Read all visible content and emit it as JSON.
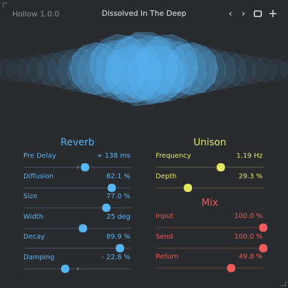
{
  "app": {
    "version": "Hollow 1.0.0",
    "preset_name": "Dissolved In The Deep"
  },
  "nav": {
    "prev": "‹",
    "next": "›",
    "add": "+"
  },
  "colors": {
    "background": "#2a2b2e",
    "reverb": "#56b5f5",
    "unison": "#e4e761",
    "mix": "#f05c5c"
  },
  "reverb": {
    "title": "Reverb",
    "params": [
      {
        "label": "Pre Delay",
        "value": "+ 138 ms",
        "level": 0.57,
        "bipolar": true
      },
      {
        "label": "Diffusion",
        "value": "82.1 %",
        "level": 0.821,
        "bipolar": false
      },
      {
        "label": "Size",
        "value": "77.0 %",
        "level": 0.77,
        "bipolar": false
      },
      {
        "label": "Width",
        "value": "25 deg",
        "level": 0.55,
        "bipolar": false
      },
      {
        "label": "Decay",
        "value": "89.9 %",
        "level": 0.899,
        "bipolar": false
      },
      {
        "label": "Damping",
        "value": "- 22.8 %",
        "level": 0.386,
        "bipolar": true
      }
    ]
  },
  "unison": {
    "title": "Unison",
    "params": [
      {
        "label": "Frequency",
        "value": "1.19 Hz",
        "level": 0.6
      },
      {
        "label": "Depth",
        "value": "29.3 %",
        "level": 0.293
      }
    ]
  },
  "mix": {
    "title": "Mix",
    "params": [
      {
        "label": "Input",
        "value": "100.0 %",
        "level": 1.0
      },
      {
        "label": "Send",
        "value": "100.0 %",
        "level": 1.0
      },
      {
        "label": "Return",
        "value": "49.8 %",
        "level": 0.7
      }
    ]
  }
}
